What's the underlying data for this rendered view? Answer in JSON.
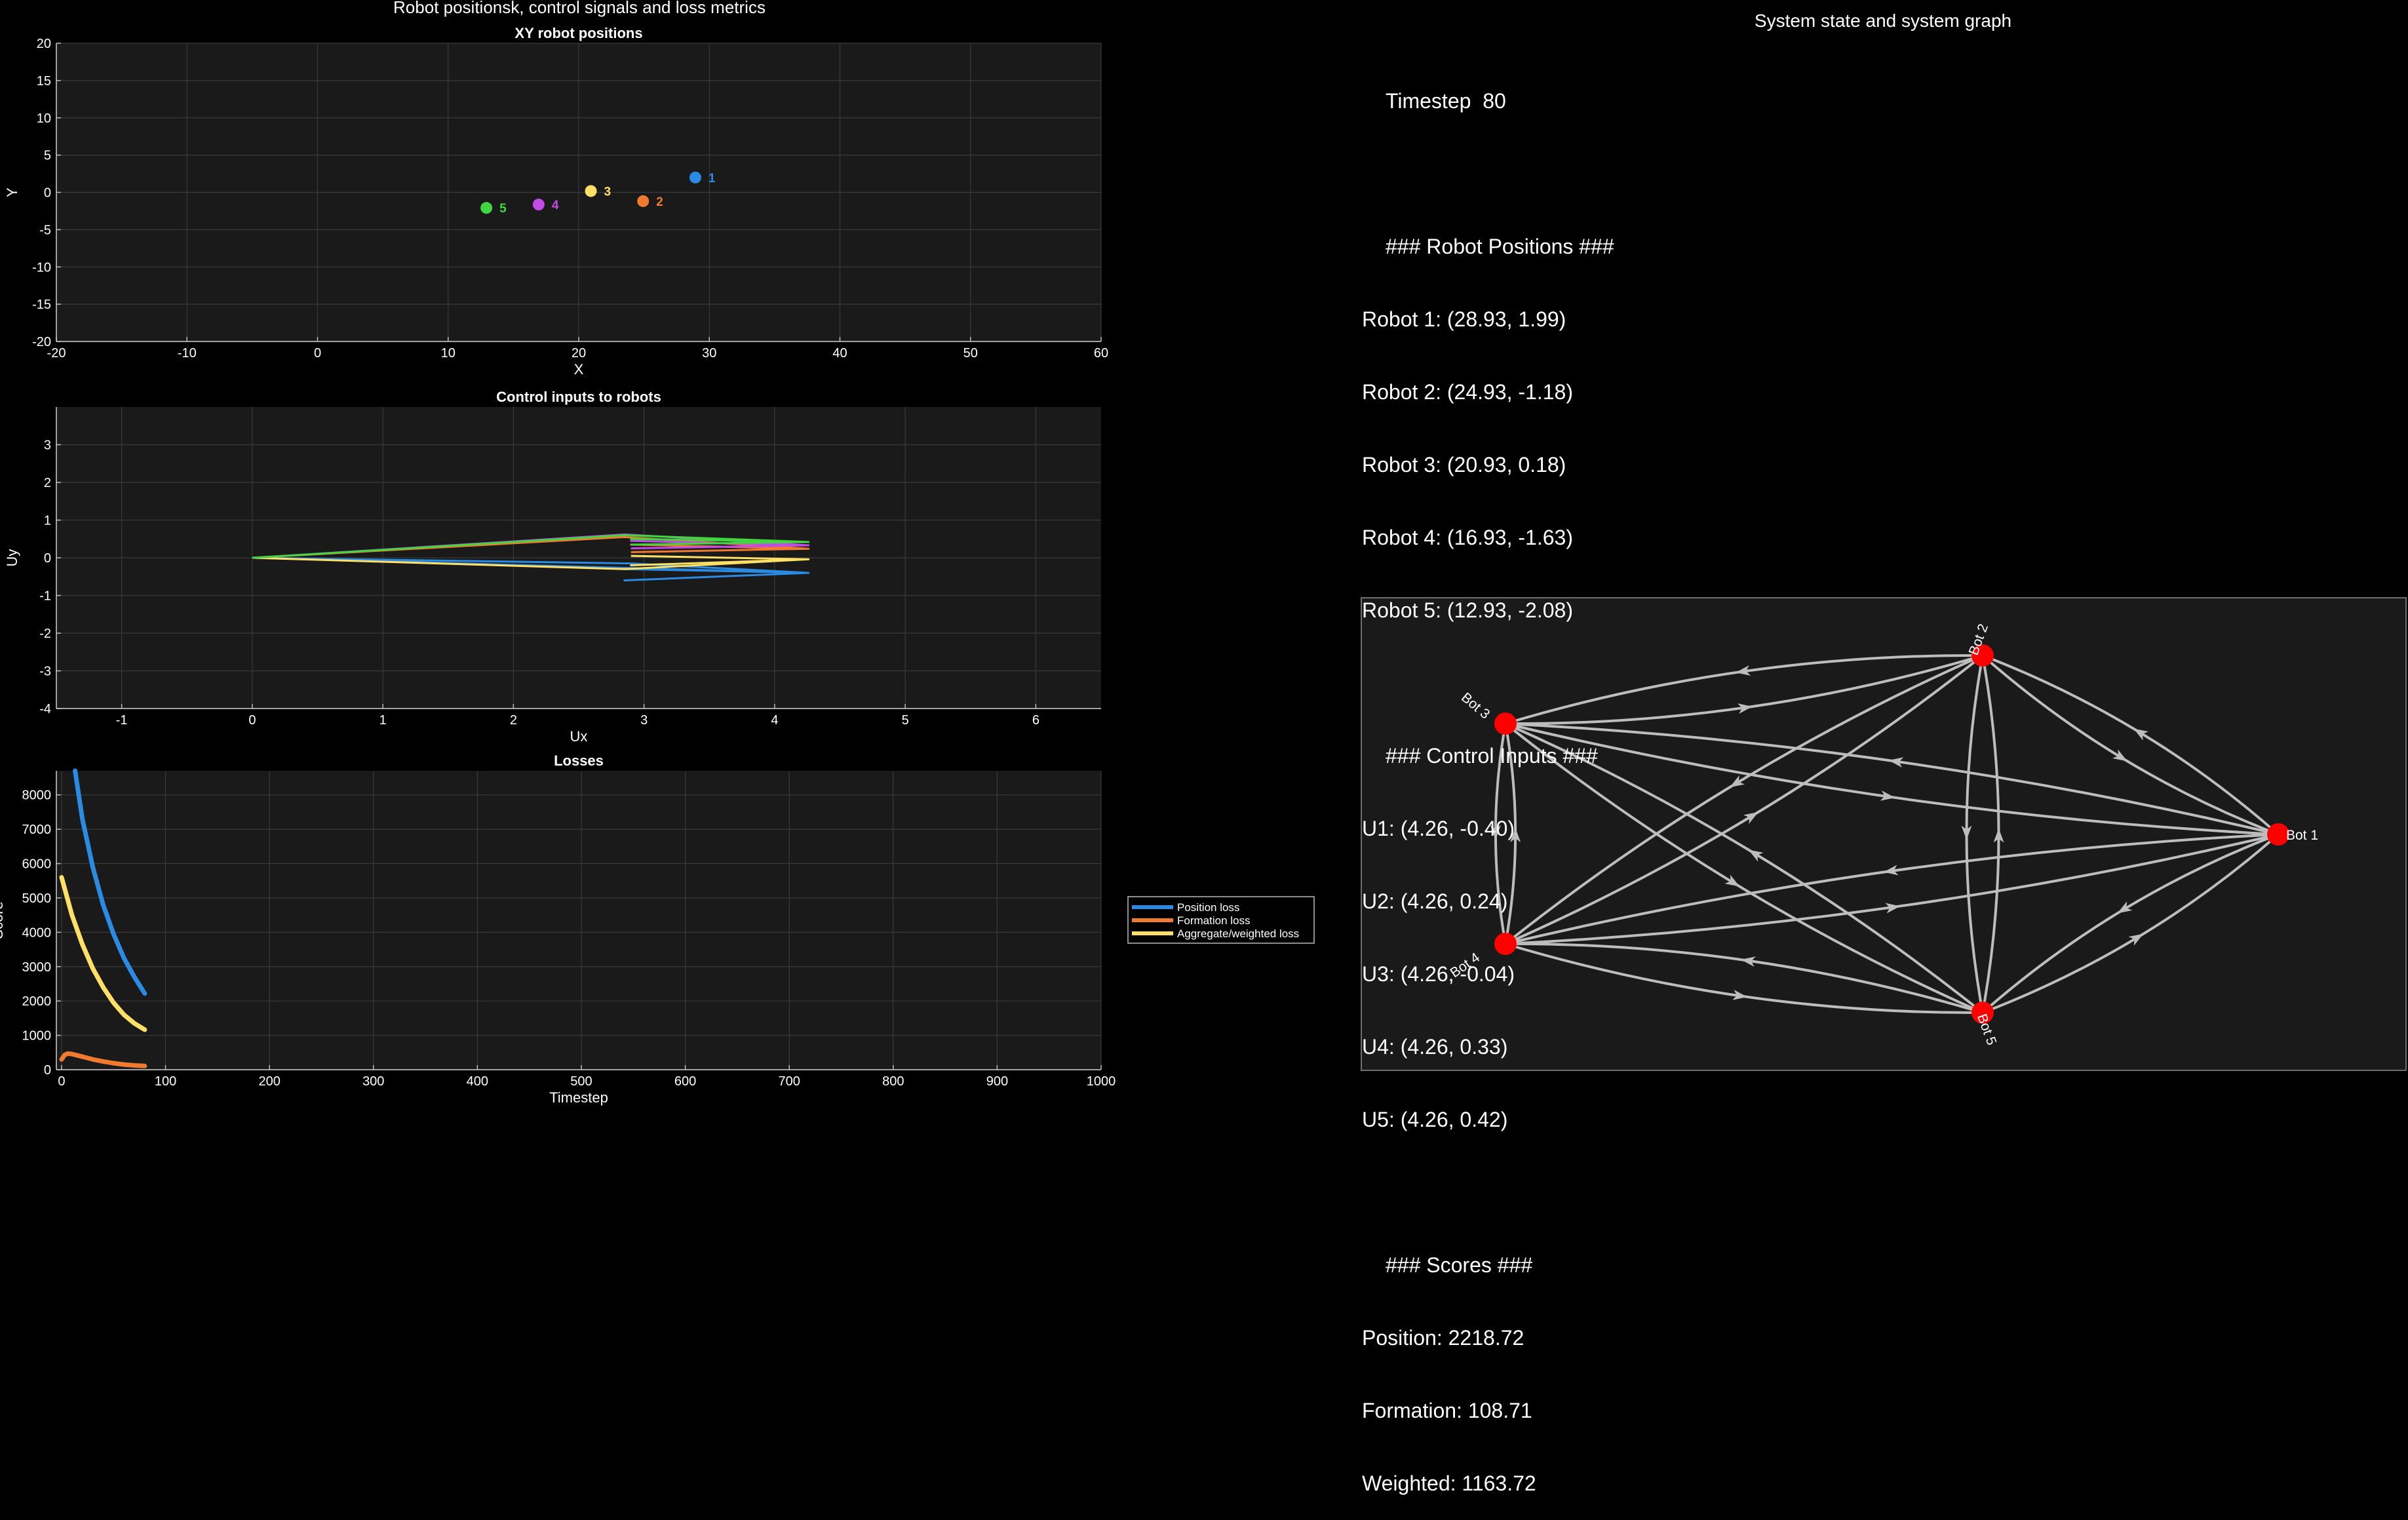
{
  "figure": {
    "left_title": "Robot positionsk, control signals and loss metrics",
    "right_title": "System state and system graph"
  },
  "colors": {
    "background": "#000000",
    "axes_bg": "#1a1a1a",
    "grid": "#3a3a3a",
    "text": "#ffffff",
    "robot_1": "#2b8be3",
    "robot_2": "#f07a30",
    "robot_3": "#ffe066",
    "robot_4": "#c34be8",
    "robot_5": "#3fd63f",
    "node": "#ff0000",
    "edge": "#bdbdbd"
  },
  "chart_data": [
    {
      "id": "positions",
      "type": "scatter",
      "title": "XY robot positions",
      "xlabel": "X",
      "ylabel": "Y",
      "xlim": [
        -20,
        60
      ],
      "ylim": [
        -20,
        20
      ],
      "xticks": [
        -20,
        -10,
        0,
        10,
        20,
        30,
        40,
        50,
        60
      ],
      "yticks": [
        -20,
        -15,
        -10,
        -5,
        0,
        5,
        10,
        15,
        20
      ],
      "grid": true,
      "series": [
        {
          "name": "1",
          "x": 28.93,
          "y": 1.99
        },
        {
          "name": "2",
          "x": 24.93,
          "y": -1.18
        },
        {
          "name": "3",
          "x": 20.93,
          "y": 0.18
        },
        {
          "name": "4",
          "x": 16.93,
          "y": -1.63
        },
        {
          "name": "5",
          "x": 12.93,
          "y": -2.08
        }
      ]
    },
    {
      "id": "controls",
      "type": "line",
      "title": "Control inputs to robots",
      "xlabel": "Ux",
      "ylabel": "Uy",
      "xlim": [
        -1.5,
        6.5
      ],
      "ylim": [
        -4,
        4
      ],
      "xticks": [
        -1,
        0,
        1,
        2,
        3,
        4,
        5,
        6
      ],
      "yticks": [
        -4,
        -3,
        -2,
        -1,
        0,
        1,
        2,
        3
      ],
      "grid": true,
      "series": [
        {
          "name": "U1",
          "points": [
            [
              0,
              0
            ],
            [
              4.26,
              -0.4
            ],
            [
              2.85,
              -0.6
            ],
            [
              4.26,
              -0.4
            ],
            [
              2.85,
              -0.3
            ],
            [
              4.26,
              -0.4
            ],
            [
              2.9,
              -0.15
            ],
            [
              0,
              0
            ]
          ]
        },
        {
          "name": "U2",
          "points": [
            [
              0,
              0
            ],
            [
              2.85,
              0.55
            ],
            [
              4.26,
              0.24
            ],
            [
              2.9,
              0.35
            ],
            [
              4.26,
              0.24
            ],
            [
              2.9,
              0.15
            ]
          ]
        },
        {
          "name": "U3",
          "points": [
            [
              0,
              0
            ],
            [
              2.85,
              -0.3
            ],
            [
              4.26,
              -0.04
            ],
            [
              2.9,
              -0.2
            ],
            [
              4.26,
              -0.04
            ],
            [
              2.9,
              0.05
            ]
          ]
        },
        {
          "name": "U4",
          "points": [
            [
              0,
              0
            ],
            [
              2.85,
              0.62
            ],
            [
              4.26,
              0.33
            ],
            [
              2.9,
              0.45
            ],
            [
              4.26,
              0.33
            ],
            [
              2.9,
              0.25
            ]
          ]
        },
        {
          "name": "U5",
          "points": [
            [
              0,
              0
            ],
            [
              2.85,
              0.6
            ],
            [
              4.26,
              0.42
            ],
            [
              2.9,
              0.5
            ],
            [
              4.26,
              0.42
            ],
            [
              2.9,
              0.35
            ]
          ]
        }
      ]
    },
    {
      "id": "losses",
      "type": "line",
      "title": "Losses",
      "xlabel": "Timestep",
      "ylabel": "Score",
      "xlim": [
        -5,
        1000
      ],
      "ylim": [
        0,
        8700
      ],
      "xticks": [
        0,
        100,
        200,
        300,
        400,
        500,
        600,
        700,
        800,
        900,
        1000
      ],
      "yticks": [
        0,
        1000,
        2000,
        3000,
        4000,
        5000,
        6000,
        7000,
        8000
      ],
      "grid": true,
      "legend": "outside-right",
      "series": [
        {
          "name": "Position loss",
          "x": [
            13,
            20,
            30,
            40,
            50,
            60,
            70,
            80
          ],
          "y": [
            8700,
            7300,
            5900,
            4800,
            3950,
            3250,
            2700,
            2219
          ]
        },
        {
          "name": "Formation loss",
          "x": [
            0,
            3,
            6,
            10,
            20,
            30,
            40,
            50,
            60,
            70,
            80
          ],
          "y": [
            300,
            430,
            470,
            455,
            380,
            300,
            240,
            190,
            150,
            125,
            109
          ]
        },
        {
          "name": "Aggregate/weighted loss",
          "x": [
            0,
            10,
            20,
            30,
            40,
            50,
            60,
            70,
            80
          ],
          "y": [
            5600,
            4500,
            3650,
            2950,
            2400,
            1950,
            1600,
            1350,
            1164
          ]
        }
      ]
    }
  ],
  "state": {
    "timestep": "Timestep  80",
    "positions_header": "### Robot Positions ###",
    "positions": [
      "Robot 1: (28.93, 1.99)",
      "Robot 2: (24.93, -1.18)",
      "Robot 3: (20.93, 0.18)",
      "Robot 4: (16.93, -1.63)",
      "Robot 5: (12.93, -2.08)"
    ],
    "controls_header": "### Control Inputs ###",
    "controls": [
      "U1: (4.26, -0.40)",
      "U2: (4.26, 0.24)",
      "U3: (4.26, -0.04)",
      "U4: (4.26, 0.33)",
      "U5: (4.26, 0.42)"
    ],
    "scores_header": "### Scores ###",
    "scores": [
      "Position: 2218.72",
      "Formation: 108.71",
      "Weighted: 1163.72"
    ]
  },
  "graph": {
    "nodes": [
      "Bot 1",
      "Bot 2",
      "Bot 3",
      "Bot 4",
      "Bot 5"
    ],
    "directed": true,
    "fully_connected": true
  }
}
